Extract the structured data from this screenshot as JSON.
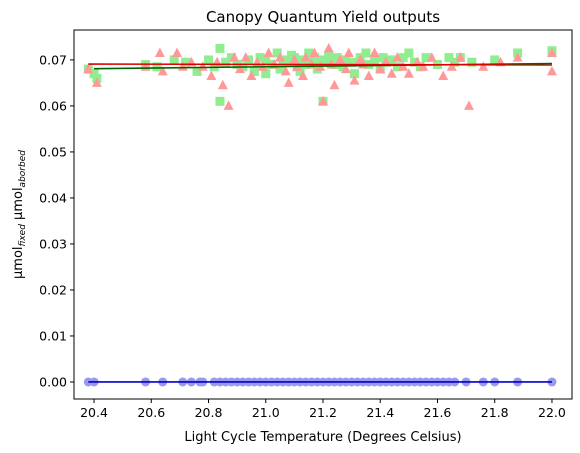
{
  "chart_data": {
    "type": "scatter",
    "title": "Canopy Quantum Yield outputs",
    "xlabel": "Light Cycle Temperature (Degrees Celsius)",
    "ylabel": {
      "main1": "µmol",
      "sub1": "fixed",
      "main2": " µmol",
      "sub2": "aborbed"
    },
    "xlim": [
      20.33,
      22.07
    ],
    "ylim": [
      -0.0037,
      0.0765
    ],
    "x_ticks": [
      20.4,
      20.6,
      20.8,
      21.0,
      21.2,
      21.4,
      21.6,
      21.8,
      22.0
    ],
    "x_tick_labels": [
      "20.4",
      "20.6",
      "20.8",
      "21.0",
      "21.2",
      "21.4",
      "21.6",
      "21.8",
      "22.0"
    ],
    "y_ticks": [
      0.0,
      0.01,
      0.02,
      0.03,
      0.04,
      0.05,
      0.06,
      0.07
    ],
    "y_tick_labels": [
      "0.00",
      "0.01",
      "0.02",
      "0.03",
      "0.04",
      "0.05",
      "0.06",
      "0.07"
    ],
    "grid": false,
    "legend": "none",
    "series": [
      {
        "marker": "square",
        "color": "#90ee90",
        "points": [
          [
            20.38,
            0.068
          ],
          [
            20.4,
            0.067
          ],
          [
            20.41,
            0.066
          ],
          [
            20.58,
            0.069
          ],
          [
            20.62,
            0.0685
          ],
          [
            20.68,
            0.07
          ],
          [
            20.72,
            0.0695
          ],
          [
            20.76,
            0.0675
          ],
          [
            20.8,
            0.07
          ],
          [
            20.82,
            0.0685
          ],
          [
            20.84,
            0.0725
          ],
          [
            20.84,
            0.061
          ],
          [
            20.86,
            0.0695
          ],
          [
            20.88,
            0.0705
          ],
          [
            20.9,
            0.069
          ],
          [
            20.92,
            0.0685
          ],
          [
            20.94,
            0.07
          ],
          [
            20.96,
            0.0675
          ],
          [
            20.98,
            0.0705
          ],
          [
            21.0,
            0.07
          ],
          [
            21.0,
            0.067
          ],
          [
            21.02,
            0.069
          ],
          [
            21.04,
            0.0715
          ],
          [
            21.05,
            0.068
          ],
          [
            21.06,
            0.07
          ],
          [
            21.08,
            0.0695
          ],
          [
            21.09,
            0.071
          ],
          [
            21.1,
            0.0705
          ],
          [
            21.11,
            0.0685
          ],
          [
            21.12,
            0.0675
          ],
          [
            21.13,
            0.07
          ],
          [
            21.14,
            0.069
          ],
          [
            21.15,
            0.0715
          ],
          [
            21.16,
            0.0695
          ],
          [
            21.17,
            0.0705
          ],
          [
            21.18,
            0.068
          ],
          [
            21.19,
            0.07
          ],
          [
            21.2,
            0.061
          ],
          [
            21.21,
            0.0695
          ],
          [
            21.22,
            0.071
          ],
          [
            21.24,
            0.069
          ],
          [
            21.25,
            0.0705
          ],
          [
            21.27,
            0.0685
          ],
          [
            21.28,
            0.07
          ],
          [
            21.3,
            0.0695
          ],
          [
            21.31,
            0.067
          ],
          [
            21.33,
            0.0705
          ],
          [
            21.35,
            0.0715
          ],
          [
            21.36,
            0.069
          ],
          [
            21.38,
            0.07
          ],
          [
            21.4,
            0.068
          ],
          [
            21.41,
            0.0705
          ],
          [
            21.42,
            0.0695
          ],
          [
            21.44,
            0.07
          ],
          [
            21.46,
            0.0685
          ],
          [
            21.48,
            0.0705
          ],
          [
            21.5,
            0.0715
          ],
          [
            21.52,
            0.0695
          ],
          [
            21.54,
            0.0685
          ],
          [
            21.56,
            0.0705
          ],
          [
            21.6,
            0.069
          ],
          [
            21.64,
            0.0705
          ],
          [
            21.66,
            0.0695
          ],
          [
            21.68,
            0.0705
          ],
          [
            21.72,
            0.0695
          ],
          [
            21.8,
            0.07
          ],
          [
            21.88,
            0.0715
          ],
          [
            22.0,
            0.072
          ]
        ]
      },
      {
        "marker": "triangle",
        "color": "#ff9999",
        "points": [
          [
            20.38,
            0.068
          ],
          [
            20.41,
            0.065
          ],
          [
            20.58,
            0.0685
          ],
          [
            20.63,
            0.0715
          ],
          [
            20.64,
            0.0675
          ],
          [
            20.69,
            0.0715
          ],
          [
            20.71,
            0.0685
          ],
          [
            20.74,
            0.0695
          ],
          [
            20.78,
            0.0685
          ],
          [
            20.81,
            0.0665
          ],
          [
            20.83,
            0.0695
          ],
          [
            20.85,
            0.0645
          ],
          [
            20.87,
            0.06
          ],
          [
            20.89,
            0.0705
          ],
          [
            20.91,
            0.068
          ],
          [
            20.93,
            0.0705
          ],
          [
            20.95,
            0.0665
          ],
          [
            20.97,
            0.0695
          ],
          [
            20.99,
            0.0685
          ],
          [
            21.01,
            0.0715
          ],
          [
            21.03,
            0.069
          ],
          [
            21.05,
            0.0705
          ],
          [
            21.07,
            0.0675
          ],
          [
            21.08,
            0.065
          ],
          [
            21.1,
            0.07
          ],
          [
            21.11,
            0.0685
          ],
          [
            21.13,
            0.0665
          ],
          [
            21.14,
            0.0705
          ],
          [
            21.16,
            0.069
          ],
          [
            21.17,
            0.0715
          ],
          [
            21.19,
            0.0685
          ],
          [
            21.2,
            0.061
          ],
          [
            21.22,
            0.0725
          ],
          [
            21.23,
            0.069
          ],
          [
            21.24,
            0.0645
          ],
          [
            21.26,
            0.07
          ],
          [
            21.28,
            0.068
          ],
          [
            21.29,
            0.0715
          ],
          [
            21.31,
            0.0655
          ],
          [
            21.33,
            0.07
          ],
          [
            21.34,
            0.069
          ],
          [
            21.36,
            0.0665
          ],
          [
            21.38,
            0.0715
          ],
          [
            21.4,
            0.068
          ],
          [
            21.42,
            0.0695
          ],
          [
            21.44,
            0.067
          ],
          [
            21.46,
            0.0705
          ],
          [
            21.48,
            0.0685
          ],
          [
            21.5,
            0.067
          ],
          [
            21.53,
            0.0695
          ],
          [
            21.55,
            0.0685
          ],
          [
            21.58,
            0.0705
          ],
          [
            21.62,
            0.0665
          ],
          [
            21.65,
            0.0685
          ],
          [
            21.68,
            0.0705
          ],
          [
            21.71,
            0.06
          ],
          [
            21.76,
            0.0685
          ],
          [
            21.82,
            0.0695
          ],
          [
            21.88,
            0.0705
          ],
          [
            22.0,
            0.0675
          ],
          [
            22.0,
            0.0715
          ]
        ]
      },
      {
        "marker": "circle",
        "color": "#9999ee",
        "points": [
          [
            20.38,
            0.0
          ],
          [
            20.4,
            0.0
          ],
          [
            20.58,
            0.0
          ],
          [
            20.64,
            0.0
          ],
          [
            20.71,
            0.0
          ],
          [
            20.74,
            0.0
          ],
          [
            20.77,
            0.0
          ],
          [
            20.78,
            0.0
          ],
          [
            20.82,
            0.0
          ],
          [
            20.84,
            0.0
          ],
          [
            20.86,
            0.0
          ],
          [
            20.88,
            0.0
          ],
          [
            20.9,
            0.0
          ],
          [
            20.92,
            0.0
          ],
          [
            20.94,
            0.0
          ],
          [
            20.96,
            0.0
          ],
          [
            20.98,
            0.0
          ],
          [
            21.0,
            0.0
          ],
          [
            21.02,
            0.0
          ],
          [
            21.04,
            0.0
          ],
          [
            21.06,
            0.0
          ],
          [
            21.08,
            0.0
          ],
          [
            21.1,
            0.0
          ],
          [
            21.12,
            0.0
          ],
          [
            21.14,
            0.0
          ],
          [
            21.16,
            0.0
          ],
          [
            21.18,
            0.0
          ],
          [
            21.2,
            0.0
          ],
          [
            21.22,
            0.0
          ],
          [
            21.24,
            0.0
          ],
          [
            21.26,
            0.0
          ],
          [
            21.28,
            0.0
          ],
          [
            21.3,
            0.0
          ],
          [
            21.32,
            0.0
          ],
          [
            21.34,
            0.0
          ],
          [
            21.36,
            0.0
          ],
          [
            21.38,
            0.0
          ],
          [
            21.4,
            0.0
          ],
          [
            21.42,
            0.0
          ],
          [
            21.44,
            0.0
          ],
          [
            21.46,
            0.0
          ],
          [
            21.48,
            0.0
          ],
          [
            21.5,
            0.0
          ],
          [
            21.52,
            0.0
          ],
          [
            21.54,
            0.0
          ],
          [
            21.56,
            0.0
          ],
          [
            21.58,
            0.0
          ],
          [
            21.6,
            0.0
          ],
          [
            21.62,
            0.0
          ],
          [
            21.64,
            0.0
          ],
          [
            21.66,
            0.0
          ],
          [
            21.7,
            0.0
          ],
          [
            21.76,
            0.0
          ],
          [
            21.8,
            0.0
          ],
          [
            21.88,
            0.0
          ],
          [
            22.0,
            0.0
          ]
        ]
      }
    ],
    "trendlines": [
      {
        "color": "#006400",
        "x": [
          20.4,
          22.0
        ],
        "y": [
          0.0681,
          0.0692
        ]
      },
      {
        "color": "#dd0000",
        "x": [
          20.38,
          22.0
        ],
        "y": [
          0.0691,
          0.0689
        ]
      },
      {
        "color": "#0000cc",
        "x": [
          20.38,
          22.0
        ],
        "y": [
          0.0,
          0.0
        ]
      }
    ]
  }
}
